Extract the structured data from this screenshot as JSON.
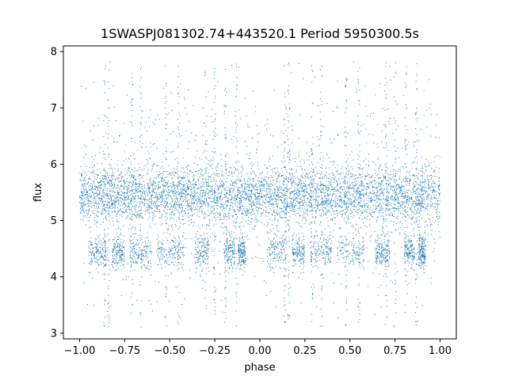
{
  "chart_data": {
    "type": "scatter",
    "title": "1SWASPJ081302.74+443520.1 Period 5950300.5s",
    "xlabel": "phase",
    "ylabel": "flux",
    "xlim": [
      -1.09,
      1.09
    ],
    "ylim": [
      2.9,
      8.1
    ],
    "xticks": [
      -1.0,
      -0.75,
      -0.5,
      -0.25,
      0.0,
      0.25,
      0.5,
      0.75,
      1.0
    ],
    "xtick_labels": [
      "−1.00",
      "−0.75",
      "−0.50",
      "−0.25",
      "0.00",
      "0.25",
      "0.50",
      "0.75",
      "1.00"
    ],
    "yticks": [
      3,
      4,
      5,
      6,
      7,
      8
    ],
    "ytick_labels": [
      "3",
      "4",
      "5",
      "6",
      "7",
      "8"
    ],
    "grid": false,
    "marker_color": "#1f77b4",
    "series": [
      {
        "description_of_distribution": "",
        "main_band_center": 5.45,
        "main_band_halfwidth": 0.45,
        "lower_band_center": 4.45,
        "lower_band_halfwidth": 0.3,
        "lower_band_phase_ranges": [
          [
            -0.95,
            -0.85
          ],
          [
            -0.82,
            -0.75
          ],
          [
            -0.72,
            -0.6
          ],
          [
            -0.57,
            -0.42
          ],
          [
            -0.36,
            -0.28
          ],
          [
            -0.2,
            -0.14
          ],
          [
            -0.12,
            -0.08
          ],
          [
            0.04,
            0.15
          ],
          [
            0.18,
            0.25
          ],
          [
            0.28,
            0.4
          ],
          [
            0.43,
            0.58
          ],
          [
            0.64,
            0.72
          ],
          [
            0.8,
            0.86
          ],
          [
            0.88,
            0.92
          ]
        ],
        "spike_phases": [
          -0.86,
          -0.84,
          -0.71,
          -0.66,
          -0.52,
          -0.45,
          -0.3,
          -0.25,
          -0.19,
          -0.13,
          0.14,
          0.16,
          0.29,
          0.34,
          0.48,
          0.55,
          0.7,
          0.75,
          0.81,
          0.87
        ],
        "y_min": 3.1,
        "y_max": 7.82,
        "phase_range": [
          -1.0,
          1.0
        ]
      }
    ]
  }
}
